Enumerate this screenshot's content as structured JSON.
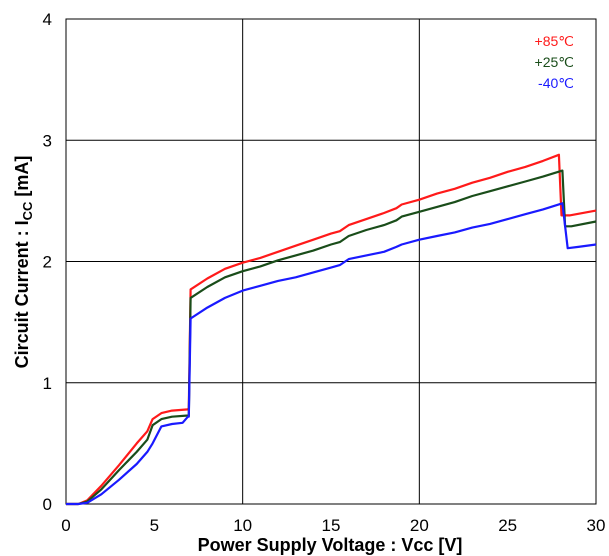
{
  "chart_data": {
    "type": "line",
    "xlabel": "Power Supply Voltage : Vcc [V]",
    "ylabel_main": "Circuit Current : I",
    "ylabel_sub": "CC",
    "ylabel_unit": "  [mA]",
    "xlim": [
      0,
      30
    ],
    "ylim": [
      0,
      4
    ],
    "x_ticks": [
      "0",
      "5",
      "10",
      "15",
      "20",
      "25",
      "30"
    ],
    "y_ticks": [
      "0",
      "1",
      "2",
      "3",
      "4"
    ],
    "grid": true,
    "legend_position": "top-right",
    "series": [
      {
        "name": "+85℃",
        "color": "#ff1a1a",
        "points": [
          [
            0,
            0
          ],
          [
            0.7,
            0
          ],
          [
            1.2,
            0.03
          ],
          [
            2,
            0.15
          ],
          [
            3,
            0.32
          ],
          [
            4,
            0.5
          ],
          [
            4.6,
            0.6
          ],
          [
            4.9,
            0.7
          ],
          [
            5.4,
            0.75
          ],
          [
            6,
            0.77
          ],
          [
            6.9,
            0.78
          ],
          [
            6.95,
            0.79
          ],
          [
            7.05,
            1.77
          ],
          [
            8,
            1.86
          ],
          [
            9,
            1.94
          ],
          [
            10,
            1.99
          ],
          [
            11,
            2.03
          ],
          [
            12,
            2.08
          ],
          [
            13,
            2.13
          ],
          [
            14,
            2.18
          ],
          [
            15,
            2.23
          ],
          [
            15.5,
            2.25
          ],
          [
            16,
            2.3
          ],
          [
            17,
            2.35
          ],
          [
            18,
            2.4
          ],
          [
            18.7,
            2.44
          ],
          [
            19,
            2.47
          ],
          [
            20,
            2.51
          ],
          [
            21,
            2.56
          ],
          [
            22,
            2.6
          ],
          [
            23,
            2.65
          ],
          [
            24,
            2.69
          ],
          [
            25,
            2.74
          ],
          [
            26,
            2.78
          ],
          [
            27,
            2.83
          ],
          [
            27.9,
            2.88
          ],
          [
            28.05,
            2.38
          ],
          [
            28.5,
            2.38
          ],
          [
            30,
            2.42
          ]
        ]
      },
      {
        "name": "+25℃",
        "color": "#1a4d1a",
        "points": [
          [
            0,
            0
          ],
          [
            0.7,
            0
          ],
          [
            1.2,
            0.02
          ],
          [
            2,
            0.12
          ],
          [
            3,
            0.28
          ],
          [
            4,
            0.43
          ],
          [
            4.6,
            0.53
          ],
          [
            4.9,
            0.65
          ],
          [
            5.4,
            0.7
          ],
          [
            6,
            0.72
          ],
          [
            6.9,
            0.73
          ],
          [
            6.95,
            0.73
          ],
          [
            7.05,
            1.7
          ],
          [
            8,
            1.79
          ],
          [
            9,
            1.87
          ],
          [
            10,
            1.92
          ],
          [
            11,
            1.96
          ],
          [
            12,
            2.01
          ],
          [
            13,
            2.05
          ],
          [
            14,
            2.09
          ],
          [
            15,
            2.14
          ],
          [
            15.5,
            2.16
          ],
          [
            16,
            2.21
          ],
          [
            17,
            2.26
          ],
          [
            18,
            2.3
          ],
          [
            18.7,
            2.34
          ],
          [
            19,
            2.37
          ],
          [
            20,
            2.41
          ],
          [
            21,
            2.45
          ],
          [
            22,
            2.49
          ],
          [
            23,
            2.54
          ],
          [
            24,
            2.58
          ],
          [
            25,
            2.62
          ],
          [
            26,
            2.66
          ],
          [
            27,
            2.7
          ],
          [
            28.1,
            2.75
          ],
          [
            28.25,
            2.29
          ],
          [
            28.6,
            2.29
          ],
          [
            30,
            2.33
          ]
        ]
      },
      {
        "name": "-40℃",
        "color": "#1a1aff",
        "points": [
          [
            0,
            0
          ],
          [
            0.7,
            0
          ],
          [
            1.2,
            0.01
          ],
          [
            2,
            0.08
          ],
          [
            3,
            0.2
          ],
          [
            4,
            0.33
          ],
          [
            4.6,
            0.43
          ],
          [
            4.9,
            0.5
          ],
          [
            5.4,
            0.64
          ],
          [
            6,
            0.66
          ],
          [
            6.6,
            0.67
          ],
          [
            6.9,
            0.72
          ],
          [
            6.95,
            0.72
          ],
          [
            7.05,
            1.53
          ],
          [
            8,
            1.62
          ],
          [
            9,
            1.7
          ],
          [
            10,
            1.76
          ],
          [
            11,
            1.8
          ],
          [
            12,
            1.84
          ],
          [
            13,
            1.87
          ],
          [
            14,
            1.91
          ],
          [
            15,
            1.95
          ],
          [
            15.5,
            1.97
          ],
          [
            16,
            2.02
          ],
          [
            17,
            2.05
          ],
          [
            18,
            2.08
          ],
          [
            18.7,
            2.12
          ],
          [
            19,
            2.14
          ],
          [
            20,
            2.18
          ],
          [
            21,
            2.21
          ],
          [
            22,
            2.24
          ],
          [
            23,
            2.28
          ],
          [
            24,
            2.31
          ],
          [
            25,
            2.35
          ],
          [
            26,
            2.39
          ],
          [
            27,
            2.43
          ],
          [
            28.1,
            2.48
          ],
          [
            28.4,
            2.11
          ],
          [
            29,
            2.12
          ],
          [
            30,
            2.14
          ]
        ]
      }
    ]
  }
}
